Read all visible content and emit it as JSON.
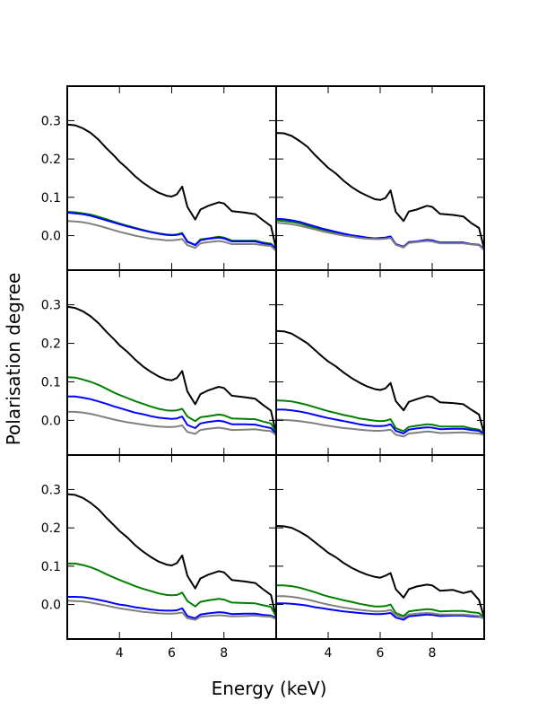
{
  "chart_data": {
    "type": "line",
    "layout": "3x2 grid of panels sharing axes",
    "xlabel": "Energy (keV)",
    "ylabel": "Polarisation degree",
    "xlim": [
      2,
      10
    ],
    "ylim": [
      -0.09,
      0.39
    ],
    "x_ticks": [
      4,
      6,
      8
    ],
    "y_ticks": [
      0.0,
      0.1,
      0.2,
      0.3
    ],
    "x_tick_labels": [
      "4",
      "6",
      "8"
    ],
    "y_tick_labels": [
      "0.0",
      "0.1",
      "0.2",
      "0.3"
    ],
    "colors": {
      "black": "#000000",
      "green": "#008000",
      "blue": "#0000ff",
      "gray": "#808080"
    },
    "x": [
      2.0,
      2.3,
      2.6,
      2.9,
      3.2,
      3.5,
      3.8,
      4.0,
      4.3,
      4.6,
      4.9,
      5.2,
      5.5,
      5.8,
      6.0,
      6.2,
      6.4,
      6.6,
      6.9,
      7.1,
      7.4,
      7.8,
      8.0,
      8.3,
      8.8,
      9.2,
      9.5,
      9.8,
      10.0
    ],
    "panels": [
      {
        "name": "row1-left",
        "series": [
          {
            "name": "black",
            "color": "#000000",
            "values": [
              0.29,
              0.288,
              0.28,
              0.268,
              0.25,
              0.228,
              0.208,
              0.193,
              0.175,
              0.155,
              0.138,
              0.124,
              0.112,
              0.104,
              0.102,
              0.108,
              0.128,
              0.075,
              0.042,
              0.068,
              0.078,
              0.087,
              0.084,
              0.064,
              0.06,
              0.056,
              0.04,
              0.025,
              -0.035
            ]
          },
          {
            "name": "green",
            "color": "#008000",
            "values": [
              0.062,
              0.061,
              0.058,
              0.055,
              0.049,
              0.043,
              0.036,
              0.032,
              0.026,
              0.02,
              0.015,
              0.01,
              0.006,
              0.003,
              0.002,
              0.003,
              0.007,
              -0.015,
              -0.024,
              -0.01,
              -0.007,
              -0.003,
              -0.005,
              -0.013,
              -0.013,
              -0.013,
              -0.018,
              -0.021,
              -0.035
            ]
          },
          {
            "name": "blue",
            "color": "#0000ff",
            "values": [
              0.06,
              0.058,
              0.056,
              0.052,
              0.046,
              0.04,
              0.034,
              0.03,
              0.024,
              0.019,
              0.014,
              0.009,
              0.005,
              0.002,
              0.001,
              0.002,
              0.005,
              -0.016,
              -0.025,
              -0.012,
              -0.008,
              -0.005,
              -0.007,
              -0.015,
              -0.015,
              -0.015,
              -0.02,
              -0.023,
              -0.035
            ]
          },
          {
            "name": "gray",
            "color": "#808080",
            "values": [
              0.038,
              0.037,
              0.035,
              0.031,
              0.026,
              0.02,
              0.014,
              0.01,
              0.005,
              0.0,
              -0.004,
              -0.008,
              -0.01,
              -0.012,
              -0.012,
              -0.011,
              -0.009,
              -0.025,
              -0.032,
              -0.02,
              -0.017,
              -0.014,
              -0.016,
              -0.022,
              -0.022,
              -0.022,
              -0.025,
              -0.027,
              -0.04
            ]
          }
        ]
      },
      {
        "name": "row1-right",
        "series": [
          {
            "name": "black",
            "color": "#000000",
            "values": [
              0.268,
              0.267,
              0.26,
              0.247,
              0.232,
              0.21,
              0.19,
              0.177,
              0.162,
              0.143,
              0.127,
              0.114,
              0.104,
              0.095,
              0.093,
              0.098,
              0.118,
              0.062,
              0.038,
              0.063,
              0.068,
              0.078,
              0.075,
              0.057,
              0.054,
              0.05,
              0.033,
              0.02,
              -0.035
            ]
          },
          {
            "name": "green",
            "color": "#008000",
            "values": [
              0.04,
              0.038,
              0.036,
              0.032,
              0.026,
              0.02,
              0.015,
              0.012,
              0.008,
              0.004,
              0.0,
              -0.003,
              -0.006,
              -0.008,
              -0.008,
              -0.007,
              -0.004,
              -0.023,
              -0.03,
              -0.018,
              -0.016,
              -0.012,
              -0.013,
              -0.018,
              -0.018,
              -0.018,
              -0.022,
              -0.024,
              -0.035
            ]
          },
          {
            "name": "blue",
            "color": "#0000ff",
            "values": [
              0.044,
              0.043,
              0.04,
              0.036,
              0.03,
              0.024,
              0.018,
              0.015,
              0.01,
              0.005,
              0.001,
              -0.002,
              -0.005,
              -0.007,
              -0.006,
              -0.005,
              -0.002,
              -0.022,
              -0.029,
              -0.017,
              -0.015,
              -0.011,
              -0.012,
              -0.018,
              -0.018,
              -0.018,
              -0.022,
              -0.024,
              -0.035
            ]
          },
          {
            "name": "gray",
            "color": "#808080",
            "values": [
              0.034,
              0.032,
              0.03,
              0.026,
              0.021,
              0.016,
              0.011,
              0.008,
              0.004,
              0.0,
              -0.003,
              -0.006,
              -0.008,
              -0.009,
              -0.009,
              -0.008,
              -0.006,
              -0.024,
              -0.031,
              -0.019,
              -0.017,
              -0.014,
              -0.015,
              -0.02,
              -0.02,
              -0.02,
              -0.023,
              -0.025,
              -0.038
            ]
          }
        ]
      },
      {
        "name": "row2-left",
        "series": [
          {
            "name": "black",
            "color": "#000000",
            "values": [
              0.295,
              0.292,
              0.283,
              0.27,
              0.252,
              0.23,
              0.21,
              0.195,
              0.178,
              0.158,
              0.14,
              0.126,
              0.114,
              0.106,
              0.104,
              0.11,
              0.128,
              0.075,
              0.042,
              0.068,
              0.078,
              0.087,
              0.084,
              0.064,
              0.06,
              0.056,
              0.04,
              0.025,
              -0.035
            ]
          },
          {
            "name": "green",
            "color": "#008000",
            "values": [
              0.112,
              0.111,
              0.106,
              0.1,
              0.092,
              0.082,
              0.072,
              0.066,
              0.058,
              0.05,
              0.043,
              0.036,
              0.03,
              0.026,
              0.025,
              0.026,
              0.03,
              0.01,
              -0.002,
              0.008,
              0.011,
              0.015,
              0.013,
              0.005,
              0.004,
              0.003,
              -0.003,
              -0.008,
              -0.032
            ]
          },
          {
            "name": "blue",
            "color": "#0000ff",
            "values": [
              0.062,
              0.062,
              0.059,
              0.055,
              0.049,
              0.043,
              0.036,
              0.032,
              0.026,
              0.02,
              0.016,
              0.011,
              0.007,
              0.005,
              0.004,
              0.005,
              0.01,
              -0.012,
              -0.02,
              -0.008,
              -0.004,
              -0.001,
              -0.003,
              -0.01,
              -0.01,
              -0.011,
              -0.016,
              -0.02,
              -0.035
            ]
          },
          {
            "name": "gray",
            "color": "#808080",
            "values": [
              0.022,
              0.022,
              0.02,
              0.017,
              0.012,
              0.007,
              0.002,
              -0.001,
              -0.005,
              -0.008,
              -0.011,
              -0.014,
              -0.016,
              -0.017,
              -0.017,
              -0.016,
              -0.013,
              -0.03,
              -0.035,
              -0.025,
              -0.022,
              -0.019,
              -0.021,
              -0.025,
              -0.024,
              -0.023,
              -0.026,
              -0.028,
              -0.038
            ]
          }
        ]
      },
      {
        "name": "row2-right",
        "series": [
          {
            "name": "black",
            "color": "#000000",
            "values": [
              0.232,
              0.231,
              0.225,
              0.213,
              0.2,
              0.182,
              0.164,
              0.153,
              0.14,
              0.124,
              0.11,
              0.098,
              0.088,
              0.081,
              0.079,
              0.083,
              0.097,
              0.05,
              0.026,
              0.048,
              0.055,
              0.063,
              0.061,
              0.047,
              0.045,
              0.042,
              0.028,
              0.015,
              -0.035
            ]
          },
          {
            "name": "green",
            "color": "#008000",
            "values": [
              0.052,
              0.051,
              0.049,
              0.045,
              0.04,
              0.034,
              0.028,
              0.024,
              0.019,
              0.014,
              0.01,
              0.005,
              0.002,
              -0.001,
              -0.002,
              -0.001,
              0.003,
              -0.02,
              -0.028,
              -0.017,
              -0.014,
              -0.01,
              -0.011,
              -0.016,
              -0.016,
              -0.016,
              -0.021,
              -0.024,
              -0.035
            ]
          },
          {
            "name": "blue",
            "color": "#0000ff",
            "values": [
              0.028,
              0.028,
              0.026,
              0.023,
              0.019,
              0.014,
              0.009,
              0.006,
              0.002,
              -0.002,
              -0.006,
              -0.01,
              -0.013,
              -0.015,
              -0.015,
              -0.014,
              -0.01,
              -0.027,
              -0.034,
              -0.024,
              -0.021,
              -0.018,
              -0.019,
              -0.023,
              -0.022,
              -0.022,
              -0.025,
              -0.027,
              -0.035
            ]
          },
          {
            "name": "gray",
            "color": "#808080",
            "values": [
              0.002,
              0.001,
              0.0,
              -0.002,
              -0.005,
              -0.008,
              -0.012,
              -0.014,
              -0.017,
              -0.02,
              -0.022,
              -0.024,
              -0.026,
              -0.027,
              -0.027,
              -0.026,
              -0.024,
              -0.037,
              -0.042,
              -0.034,
              -0.032,
              -0.029,
              -0.03,
              -0.033,
              -0.032,
              -0.031,
              -0.033,
              -0.034,
              -0.038
            ]
          }
        ]
      },
      {
        "name": "row3-left",
        "series": [
          {
            "name": "black",
            "color": "#000000",
            "values": [
              0.288,
              0.286,
              0.278,
              0.265,
              0.248,
              0.226,
              0.206,
              0.192,
              0.175,
              0.155,
              0.138,
              0.124,
              0.112,
              0.104,
              0.102,
              0.108,
              0.128,
              0.075,
              0.042,
              0.068,
              0.078,
              0.087,
              0.084,
              0.064,
              0.06,
              0.056,
              0.04,
              0.025,
              -0.035
            ]
          },
          {
            "name": "green",
            "color": "#008000",
            "values": [
              0.107,
              0.107,
              0.103,
              0.097,
              0.089,
              0.079,
              0.07,
              0.064,
              0.056,
              0.048,
              0.041,
              0.035,
              0.029,
              0.025,
              0.024,
              0.025,
              0.031,
              0.009,
              -0.005,
              0.007,
              0.011,
              0.015,
              0.013,
              0.005,
              0.004,
              0.003,
              -0.002,
              -0.006,
              -0.032
            ]
          },
          {
            "name": "blue",
            "color": "#0000ff",
            "values": [
              0.02,
              0.02,
              0.019,
              0.016,
              0.012,
              0.008,
              0.003,
              0.0,
              -0.003,
              -0.007,
              -0.01,
              -0.013,
              -0.015,
              -0.016,
              -0.016,
              -0.015,
              -0.01,
              -0.03,
              -0.036,
              -0.026,
              -0.023,
              -0.02,
              -0.021,
              -0.025,
              -0.024,
              -0.024,
              -0.027,
              -0.029,
              -0.035
            ]
          },
          {
            "name": "gray",
            "color": "#808080",
            "values": [
              0.01,
              0.009,
              0.008,
              0.005,
              0.001,
              -0.003,
              -0.007,
              -0.01,
              -0.013,
              -0.016,
              -0.019,
              -0.021,
              -0.023,
              -0.024,
              -0.024,
              -0.023,
              -0.021,
              -0.036,
              -0.04,
              -0.032,
              -0.03,
              -0.028,
              -0.029,
              -0.031,
              -0.03,
              -0.029,
              -0.031,
              -0.032,
              -0.038
            ]
          }
        ]
      },
      {
        "name": "row3-right",
        "series": [
          {
            "name": "black",
            "color": "#000000",
            "values": [
              0.205,
              0.204,
              0.2,
              0.19,
              0.178,
              0.162,
              0.146,
              0.135,
              0.123,
              0.108,
              0.096,
              0.086,
              0.078,
              0.072,
              0.07,
              0.075,
              0.082,
              0.04,
              0.018,
              0.04,
              0.047,
              0.052,
              0.05,
              0.036,
              0.038,
              0.03,
              0.035,
              0.012,
              -0.035
            ]
          },
          {
            "name": "green",
            "color": "#008000",
            "values": [
              0.05,
              0.05,
              0.048,
              0.044,
              0.038,
              0.032,
              0.025,
              0.021,
              0.016,
              0.011,
              0.007,
              0.002,
              -0.002,
              -0.005,
              -0.005,
              -0.004,
              0.0,
              -0.022,
              -0.03,
              -0.018,
              -0.015,
              -0.012,
              -0.013,
              -0.018,
              -0.017,
              -0.017,
              -0.02,
              -0.022,
              -0.035
            ]
          },
          {
            "name": "blue",
            "color": "#0000ff",
            "values": [
              0.003,
              0.003,
              0.002,
              0.0,
              -0.003,
              -0.007,
              -0.01,
              -0.012,
              -0.015,
              -0.018,
              -0.02,
              -0.022,
              -0.024,
              -0.025,
              -0.025,
              -0.024,
              -0.022,
              -0.034,
              -0.04,
              -0.031,
              -0.029,
              -0.026,
              -0.027,
              -0.03,
              -0.029,
              -0.029,
              -0.031,
              -0.032,
              -0.035
            ]
          },
          {
            "name": "gray",
            "color": "#808080",
            "values": [
              0.022,
              0.022,
              0.02,
              0.017,
              0.013,
              0.008,
              0.003,
              0.0,
              -0.004,
              -0.008,
              -0.011,
              -0.014,
              -0.016,
              -0.018,
              -0.018,
              -0.017,
              -0.014,
              -0.028,
              -0.034,
              -0.026,
              -0.024,
              -0.022,
              -0.023,
              -0.026,
              -0.026,
              -0.026,
              -0.028,
              -0.03,
              -0.038
            ]
          }
        ]
      }
    ]
  }
}
